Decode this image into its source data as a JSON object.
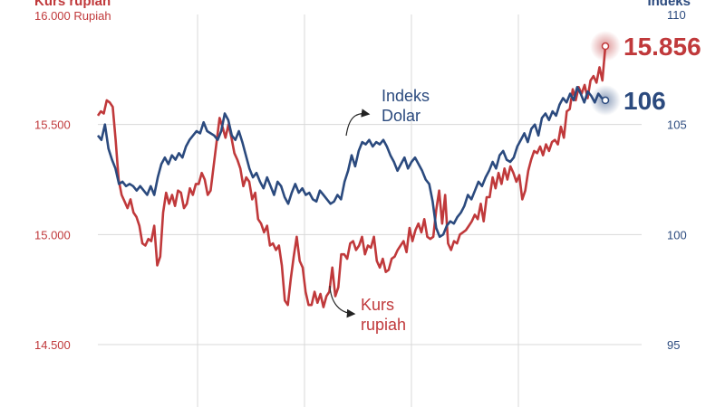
{
  "chart_data": {
    "type": "line",
    "left_axis": {
      "title": "Kurs rupiah",
      "unit_label": "16.000 Rupiah",
      "ticks": [
        "15.500",
        "15.000",
        "14.500"
      ],
      "tick_values": [
        15500,
        15000,
        14500
      ],
      "range": [
        14500,
        16000
      ]
    },
    "right_axis": {
      "title": "Indeks",
      "ticks": [
        "110",
        "105",
        "100",
        "95"
      ],
      "tick_values": [
        110,
        105,
        100,
        95
      ],
      "range": [
        95,
        110
      ]
    },
    "grid": {
      "horizontal": true,
      "vertical_lines": 4
    },
    "series": [
      {
        "name": "Kurs rupiah",
        "annotation": [
          "Kurs",
          "rupiah"
        ],
        "axis": "left",
        "color": "#c0393b",
        "end_label": "15.856",
        "values": [
          15540,
          15560,
          15550,
          15610,
          15600,
          15580,
          15430,
          15250,
          15180,
          15150,
          15120,
          15160,
          15100,
          15080,
          15040,
          14960,
          14950,
          14980,
          14970,
          15040,
          14860,
          14900,
          15100,
          15190,
          15140,
          15180,
          15130,
          15200,
          15190,
          15120,
          15140,
          15210,
          15180,
          15230,
          15230,
          15280,
          15250,
          15180,
          15200,
          15310,
          15420,
          15530,
          15490,
          15440,
          15500,
          15440,
          15370,
          15340,
          15300,
          15220,
          15260,
          15240,
          15160,
          15190,
          15070,
          15050,
          15010,
          15040,
          14950,
          14960,
          14930,
          14950,
          14860,
          14700,
          14680,
          14800,
          14900,
          14990,
          14880,
          14850,
          14740,
          14680,
          14680,
          14740,
          14690,
          14730,
          14670,
          14720,
          14740,
          14850,
          14720,
          14760,
          14910,
          14910,
          14890,
          14960,
          14970,
          14930,
          14950,
          14990,
          14910,
          14950,
          14940,
          14990,
          14880,
          14850,
          14890,
          14830,
          14840,
          14890,
          14900,
          14930,
          14950,
          14970,
          14920,
          15030,
          14970,
          15020,
          15050,
          15010,
          15070,
          14990,
          14980,
          14990,
          15110,
          15200,
          15050,
          15180,
          14960,
          14930,
          14970,
          14960,
          15000,
          15010,
          15020,
          15040,
          15060,
          15090,
          15070,
          15140,
          15060,
          15170,
          15170,
          15260,
          15210,
          15280,
          15230,
          15300,
          15250,
          15310,
          15280,
          15240,
          15270,
          15160,
          15200,
          15290,
          15340,
          15380,
          15370,
          15400,
          15360,
          15410,
          15380,
          15420,
          15430,
          15410,
          15490,
          15440,
          15560,
          15570,
          15660,
          15610,
          15670,
          15640,
          15680,
          15620,
          15700,
          15720,
          15690,
          15760,
          15700,
          15856
        ]
      },
      {
        "name": "Indeks Dolar",
        "annotation": [
          "Indeks",
          "Dolar"
        ],
        "axis": "right",
        "color": "#2b4a7e",
        "end_label": "106",
        "values": [
          104.5,
          104.3,
          105.0,
          103.9,
          103.4,
          103.0,
          102.3,
          102.4,
          102.2,
          102.3,
          102.2,
          102.0,
          102.2,
          102.0,
          101.8,
          102.2,
          101.8,
          102.6,
          103.2,
          103.5,
          103.2,
          103.6,
          103.4,
          103.7,
          103.5,
          104.0,
          104.3,
          104.5,
          104.7,
          104.6,
          105.1,
          104.7,
          104.6,
          104.5,
          104.3,
          104.7,
          105.5,
          105.2,
          104.5,
          104.3,
          104.7,
          104.2,
          103.6,
          103.0,
          102.6,
          102.8,
          102.4,
          102.1,
          102.6,
          102.2,
          101.8,
          102.4,
          102.2,
          101.7,
          101.4,
          101.9,
          102.3,
          101.9,
          102.1,
          101.8,
          101.9,
          101.6,
          101.5,
          102.0,
          101.8,
          101.6,
          101.4,
          101.5,
          101.8,
          101.6,
          102.4,
          102.9,
          103.6,
          103.1,
          103.8,
          104.2,
          104.1,
          104.3,
          104.0,
          104.2,
          104.1,
          104.3,
          104.0,
          103.6,
          103.3,
          102.9,
          103.2,
          103.5,
          103.0,
          103.3,
          103.5,
          103.2,
          102.9,
          102.5,
          102.3,
          101.5,
          100.3,
          99.9,
          100.0,
          100.4,
          100.6,
          100.5,
          100.8,
          101.0,
          101.3,
          101.8,
          101.6,
          102.0,
          102.4,
          102.2,
          102.6,
          102.9,
          103.3,
          103.0,
          103.6,
          103.8,
          103.4,
          103.3,
          103.5,
          104.0,
          104.3,
          104.6,
          104.2,
          104.8,
          105.0,
          104.5,
          105.3,
          105.5,
          105.2,
          105.6,
          105.4,
          105.9,
          106.2,
          106.0,
          106.4,
          106.1,
          106.7,
          106.4,
          106.0,
          106.5,
          106.3,
          106.0,
          106.4,
          106.2,
          106.1
        ]
      }
    ]
  }
}
